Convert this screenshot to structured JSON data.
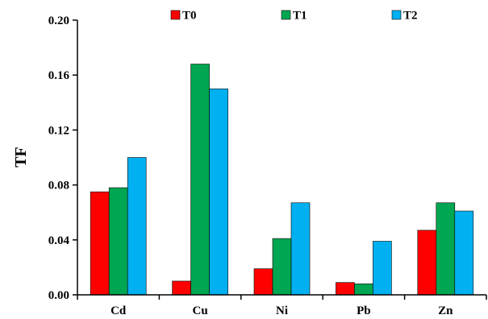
{
  "chart_data": {
    "type": "bar",
    "title": "",
    "xlabel": "",
    "ylabel": "TF",
    "ylim": [
      0,
      0.2
    ],
    "yticks": [
      "0.00",
      "0.04",
      "0.08",
      "0.12",
      "0.16",
      "0.20"
    ],
    "categories": [
      "Cd",
      "Cu",
      "Ni",
      "Pb",
      "Zn"
    ],
    "series": [
      {
        "name": "T0",
        "color": "#ff0000",
        "values": [
          0.075,
          0.01,
          0.019,
          0.009,
          0.047
        ]
      },
      {
        "name": "T1",
        "color": "#00a651",
        "values": [
          0.078,
          0.168,
          0.041,
          0.008,
          0.067
        ]
      },
      {
        "name": "T2",
        "color": "#00b0f0",
        "values": [
          0.1,
          0.15,
          0.067,
          0.039,
          0.061
        ]
      }
    ],
    "grid": false,
    "legend_position": "top"
  }
}
